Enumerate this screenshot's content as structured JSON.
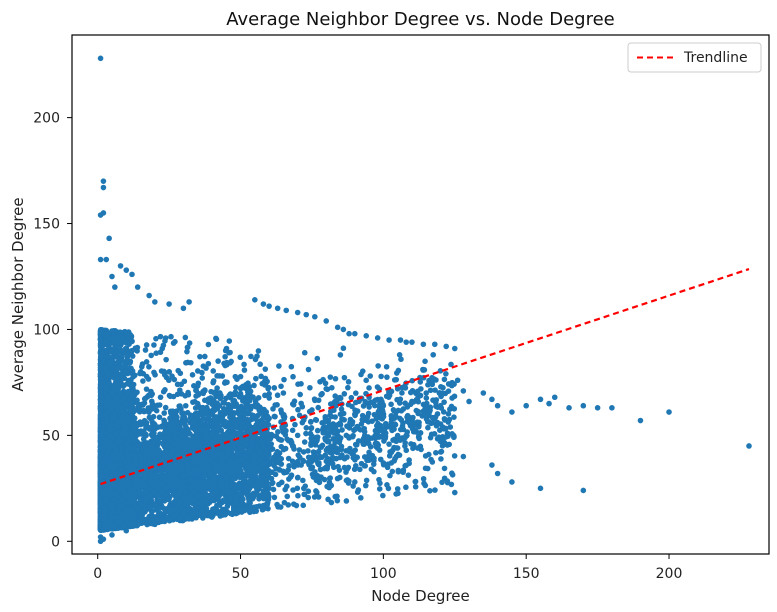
{
  "chart_data": {
    "type": "scatter",
    "title": "Average Neighbor Degree vs. Node Degree",
    "xlabel": "Node Degree",
    "ylabel": "Average Neighbor Degree",
    "xlim": [
      -9,
      235
    ],
    "ylim": [
      -6,
      239
    ],
    "xticks": [
      0,
      50,
      100,
      150,
      200
    ],
    "yticks": [
      0,
      50,
      100,
      150,
      200
    ],
    "grid": false,
    "legend_position": "top-right",
    "colors": {
      "points": "#1f77b4",
      "trendline": "#ff0000",
      "axes": "#000000"
    },
    "trendline": {
      "name": "Trendline",
      "style": "dashed",
      "x": [
        1,
        228
      ],
      "y": [
        27,
        128.5
      ]
    },
    "series": [
      {
        "marker": "circle",
        "cloud_description_points": {
          "main_mass": [
            [
              1,
              2
            ],
            [
              2,
              10
            ],
            [
              3,
              20
            ],
            [
              4,
              35
            ],
            [
              5,
              45
            ],
            [
              6,
              60
            ],
            [
              8,
              70
            ],
            [
              10,
              80
            ],
            [
              12,
              90
            ],
            [
              15,
              20
            ],
            [
              18,
              40
            ],
            [
              20,
              55
            ],
            [
              22,
              68
            ],
            [
              25,
              80
            ],
            [
              28,
              30
            ],
            [
              30,
              50
            ],
            [
              35,
              65
            ],
            [
              40,
              45
            ],
            [
              45,
              75
            ],
            [
              50,
              60
            ],
            [
              55,
              40
            ],
            [
              60,
              58
            ],
            [
              65,
              70
            ],
            [
              70,
              50
            ],
            [
              75,
              62
            ],
            [
              80,
              72
            ],
            [
              85,
              55
            ],
            [
              90,
              60
            ],
            [
              95,
              68
            ],
            [
              100,
              64
            ],
            [
              105,
              72
            ],
            [
              110,
              66
            ],
            [
              115,
              70
            ],
            [
              120,
              64
            ]
          ]
        },
        "outliers": [
          [
            1,
            228
          ],
          [
            2,
            170
          ],
          [
            2,
            167
          ],
          [
            2,
            155
          ],
          [
            1,
            154
          ],
          [
            4,
            143
          ],
          [
            1,
            133
          ],
          [
            3,
            133
          ],
          [
            5,
            125
          ],
          [
            6,
            120
          ],
          [
            8,
            130
          ],
          [
            10,
            128
          ],
          [
            12,
            126
          ],
          [
            14,
            120
          ],
          [
            18,
            116
          ],
          [
            20,
            113
          ],
          [
            25,
            112
          ],
          [
            30,
            110
          ],
          [
            32,
            113
          ],
          [
            55,
            114
          ],
          [
            58,
            112
          ],
          [
            60,
            111
          ],
          [
            63,
            110
          ],
          [
            66,
            109
          ],
          [
            70,
            108
          ],
          [
            73,
            107
          ],
          [
            76,
            106
          ],
          [
            80,
            104
          ],
          [
            84,
            101
          ],
          [
            86,
            100
          ],
          [
            88,
            98
          ],
          [
            90,
            98
          ],
          [
            94,
            97
          ],
          [
            98,
            96
          ],
          [
            102,
            95
          ],
          [
            106,
            95
          ],
          [
            108,
            94
          ],
          [
            110,
            94
          ],
          [
            114,
            93
          ],
          [
            118,
            93
          ],
          [
            122,
            92
          ],
          [
            125,
            91
          ],
          [
            126,
            76
          ],
          [
            128,
            71
          ],
          [
            130,
            66
          ],
          [
            135,
            70
          ],
          [
            138,
            67
          ],
          [
            140,
            64
          ],
          [
            145,
            61
          ],
          [
            150,
            64
          ],
          [
            155,
            67
          ],
          [
            158,
            65
          ],
          [
            160,
            68
          ],
          [
            165,
            63
          ],
          [
            170,
            64
          ],
          [
            175,
            63
          ],
          [
            180,
            63
          ],
          [
            190,
            57
          ],
          [
            200,
            61
          ],
          [
            228,
            45
          ],
          [
            170,
            24
          ],
          [
            155,
            25
          ],
          [
            145,
            28
          ],
          [
            140,
            32
          ],
          [
            138,
            36
          ],
          [
            128,
            40
          ],
          [
            125,
            23
          ],
          [
            112,
            44
          ],
          [
            108,
            50
          ],
          [
            105,
            44
          ],
          [
            100,
            37
          ],
          [
            95,
            42
          ],
          [
            90,
            28
          ],
          [
            80,
            35
          ],
          [
            70,
            30
          ],
          [
            60,
            25
          ],
          [
            50,
            15
          ],
          [
            40,
            20
          ],
          [
            30,
            12
          ],
          [
            20,
            8
          ],
          [
            10,
            5
          ],
          [
            5,
            3
          ],
          [
            2,
            1
          ],
          [
            1,
            0
          ]
        ]
      }
    ]
  }
}
